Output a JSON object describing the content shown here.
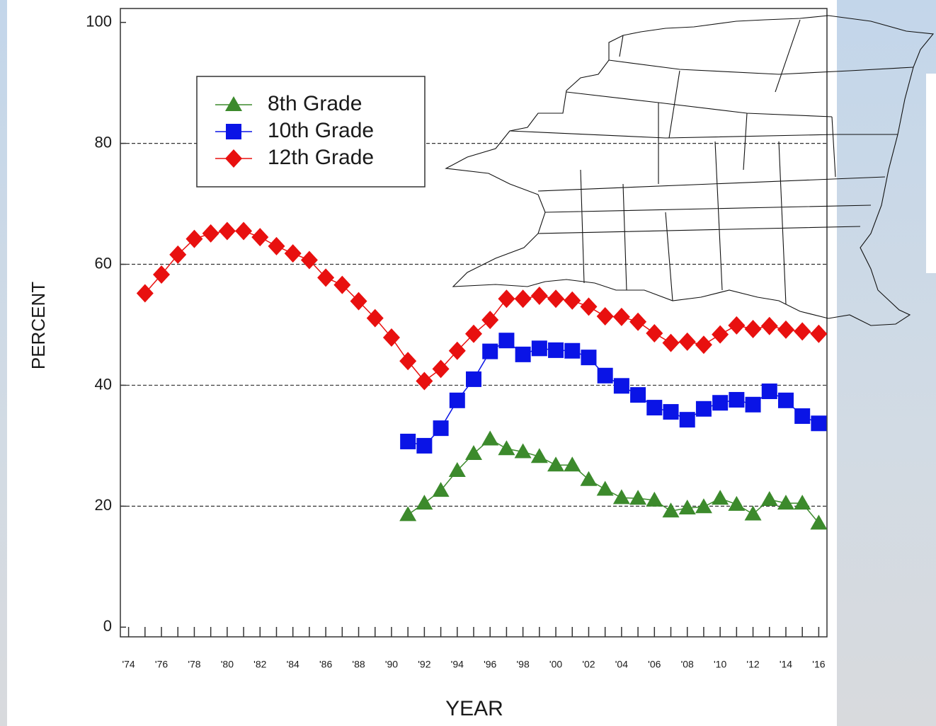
{
  "chart_data": {
    "type": "line",
    "xlabel": "YEAR",
    "ylabel": "PERCENT",
    "x": [
      1975,
      1976,
      1977,
      1978,
      1979,
      1980,
      1981,
      1982,
      1983,
      1984,
      1985,
      1986,
      1987,
      1988,
      1989,
      1990,
      1991,
      1992,
      1993,
      1994,
      1995,
      1996,
      1997,
      1998,
      1999,
      2000,
      2001,
      2002,
      2003,
      2004,
      2005,
      2006,
      2007,
      2008,
      2009,
      2010,
      2011,
      2012,
      2013,
      2014,
      2015,
      2016
    ],
    "series": [
      {
        "name": "8th Grade",
        "color": "#3c8a2c",
        "marker": "triangle",
        "values": [
          null,
          null,
          null,
          null,
          null,
          null,
          null,
          null,
          null,
          null,
          null,
          null,
          null,
          null,
          null,
          null,
          18.6,
          20.5,
          22.6,
          25.9,
          28.7,
          31.1,
          29.5,
          29.0,
          28.2,
          26.8,
          26.8,
          24.4,
          22.8,
          21.4,
          21.3,
          21.0,
          19.2,
          19.7,
          19.9,
          21.3,
          20.3,
          18.7,
          21.1,
          20.5,
          20.5,
          17.2
        ]
      },
      {
        "name": "10th Grade",
        "color": "#0a14e6",
        "marker": "square",
        "values": [
          null,
          null,
          null,
          null,
          null,
          null,
          null,
          null,
          null,
          null,
          null,
          null,
          null,
          null,
          null,
          null,
          30.7,
          30.0,
          32.9,
          37.5,
          41.0,
          45.6,
          47.4,
          45.1,
          46.1,
          45.8,
          45.7,
          44.6,
          41.6,
          39.9,
          38.4,
          36.3,
          35.6,
          34.3,
          36.1,
          37.1,
          37.6,
          36.8,
          39.0,
          37.5,
          34.9,
          33.7
        ]
      },
      {
        "name": "12th Grade",
        "color": "#e8100f",
        "marker": "diamond",
        "values": [
          55.2,
          58.3,
          61.6,
          64.2,
          65.1,
          65.5,
          65.5,
          64.5,
          63.0,
          61.8,
          60.7,
          57.8,
          56.6,
          53.9,
          51.1,
          47.9,
          44.0,
          40.7,
          42.7,
          45.7,
          48.5,
          50.8,
          54.3,
          54.3,
          54.8,
          54.3,
          54.0,
          53.0,
          51.4,
          51.3,
          50.5,
          48.6,
          47.0,
          47.2,
          46.7,
          48.4,
          49.9,
          49.3,
          49.8,
          49.2,
          48.9,
          48.5
        ]
      }
    ],
    "xlim": [
      1973.5,
      2016.5
    ],
    "xticks": [
      {
        "value": 1974,
        "label": "'74"
      },
      {
        "value": 1976,
        "label": "'76"
      },
      {
        "value": 1978,
        "label": "'78"
      },
      {
        "value": 1980,
        "label": "'80"
      },
      {
        "value": 1982,
        "label": "'82"
      },
      {
        "value": 1984,
        "label": "'84"
      },
      {
        "value": 1986,
        "label": "'86"
      },
      {
        "value": 1988,
        "label": "'88"
      },
      {
        "value": 1990,
        "label": "'90"
      },
      {
        "value": 1992,
        "label": "'92"
      },
      {
        "value": 1994,
        "label": "'94"
      },
      {
        "value": 1996,
        "label": "'96"
      },
      {
        "value": 1998,
        "label": "'98"
      },
      {
        "value": 2000,
        "label": "'00"
      },
      {
        "value": 2002,
        "label": "'02"
      },
      {
        "value": 2004,
        "label": "'04"
      },
      {
        "value": 2006,
        "label": "'06"
      },
      {
        "value": 2008,
        "label": "'08"
      },
      {
        "value": 2010,
        "label": "'10"
      },
      {
        "value": 2012,
        "label": "'12"
      },
      {
        "value": 2014,
        "label": "'14"
      },
      {
        "value": 2016,
        "label": "'16"
      }
    ],
    "xminorticks": [
      1975,
      1977,
      1979,
      1981,
      1983,
      1985,
      1987,
      1989,
      1991,
      1993,
      1995,
      1997,
      1999,
      2001,
      2003,
      2005,
      2007,
      2009,
      2011,
      2013,
      2015
    ],
    "ylim": [
      -1.6,
      102.3
    ],
    "yticks": [
      0,
      20,
      40,
      60,
      80,
      100
    ],
    "grid": true,
    "legend": "upper left"
  }
}
